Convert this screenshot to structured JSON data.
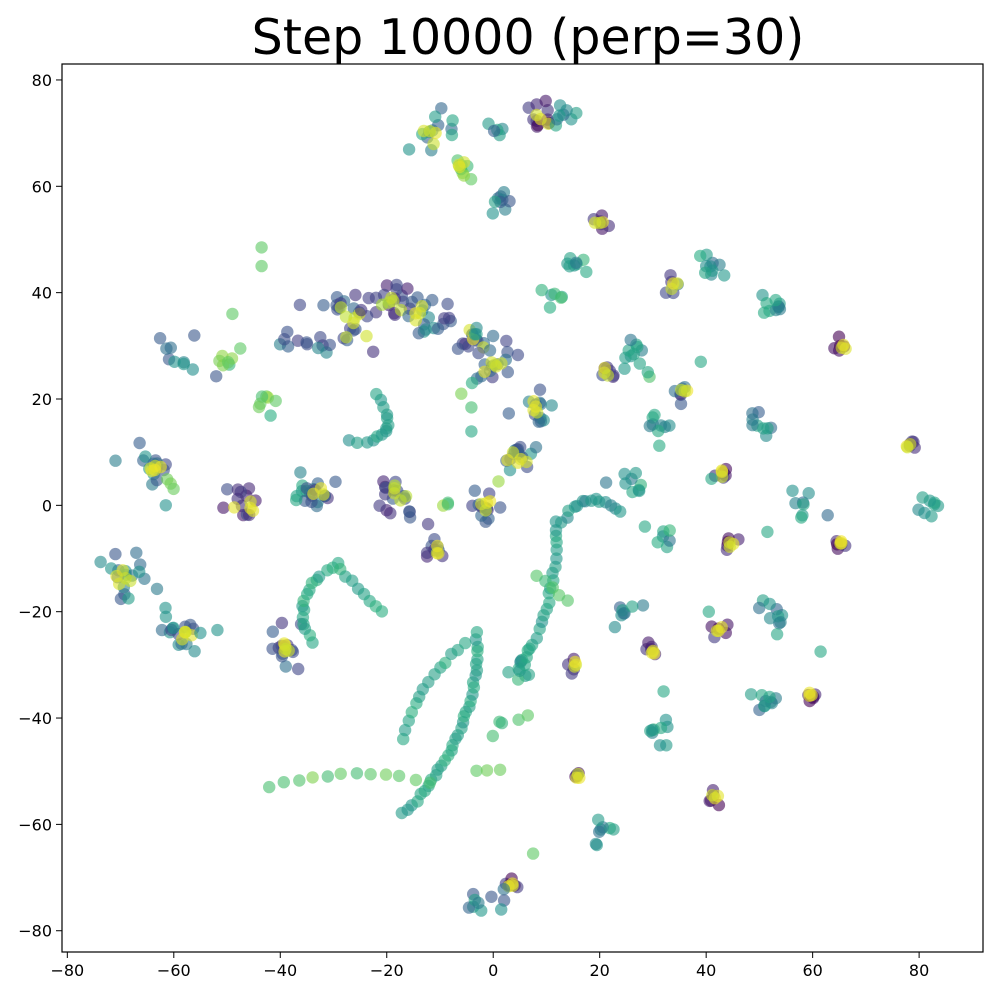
{
  "chart_data": {
    "type": "scatter",
    "title": "Step 10000 (perp=30)",
    "xlabel": "",
    "ylabel": "",
    "xlim": [
      -81,
      92
    ],
    "ylim": [
      -84,
      83
    ],
    "xticks": [
      -80,
      -60,
      -40,
      -20,
      0,
      20,
      40,
      60,
      80
    ],
    "yticks": [
      -80,
      -60,
      -40,
      -20,
      0,
      20,
      40,
      60,
      80
    ],
    "xtick_labels": [
      "−80",
      "−60",
      "−40",
      "−20",
      "0",
      "20",
      "40",
      "60",
      "80"
    ],
    "ytick_labels": [
      "−80",
      "−60",
      "−40",
      "−20",
      "0",
      "20",
      "40",
      "60",
      "80"
    ],
    "grid": false,
    "colormap": "viridis",
    "marker_alpha": 0.6,
    "clusters": [
      {
        "x": -11,
        "y": 69,
        "spread": 2.2,
        "n": 12,
        "c": 0.5,
        "top": 0.95
      },
      {
        "x": 1,
        "y": 71,
        "spread": 1.0,
        "n": 5,
        "c": 0.5
      },
      {
        "x": 9,
        "y": 72,
        "spread": 1.8,
        "n": 10,
        "c": 0.1,
        "top": 0.95
      },
      {
        "x": 13,
        "y": 73,
        "spread": 1.5,
        "n": 8,
        "c": 0.5
      },
      {
        "x": -6,
        "y": 63,
        "spread": 1.2,
        "n": 8,
        "c": 0.8,
        "top": 0.95
      },
      {
        "x": 1,
        "y": 57,
        "spread": 1.3,
        "n": 9,
        "c": 0.45
      },
      {
        "x": 20,
        "y": 53.5,
        "spread": 1.0,
        "n": 6,
        "c": 0.1,
        "top": 0.95
      },
      {
        "x": 16,
        "y": 45,
        "spread": 1.2,
        "n": 8,
        "c": 0.55
      },
      {
        "x": 41,
        "y": 45,
        "spread": 1.5,
        "n": 10,
        "c": 0.5
      },
      {
        "x": 34,
        "y": 41.5,
        "spread": 0.8,
        "n": 5,
        "c": 0.3,
        "top": 0.95
      },
      {
        "x": 53,
        "y": 38,
        "spread": 1.6,
        "n": 10,
        "c": 0.5
      },
      {
        "x": 11,
        "y": 39,
        "spread": 1.4,
        "n": 6,
        "c": 0.6
      },
      {
        "x": -27,
        "y": 35,
        "spread": 3.5,
        "n": 22,
        "c": 0.3,
        "top": 0.93
      },
      {
        "x": -19,
        "y": 38,
        "spread": 2.5,
        "n": 14,
        "c": 0.2,
        "top": 0.9
      },
      {
        "x": -14,
        "y": 36,
        "spread": 2.2,
        "n": 12,
        "c": 0.4,
        "top": 0.95
      },
      {
        "x": -33,
        "y": 30,
        "spread": 1.2,
        "n": 6,
        "c": 0.35
      },
      {
        "x": -39,
        "y": 31,
        "spread": 1.0,
        "n": 4,
        "c": 0.4
      },
      {
        "x": -9,
        "y": 35,
        "spread": 1.2,
        "n": 6,
        "c": 0.3
      },
      {
        "x": -3,
        "y": 31,
        "spread": 1.5,
        "n": 10,
        "c": 0.3,
        "top": 0.95
      },
      {
        "x": 0,
        "y": 26,
        "spread": 1.8,
        "n": 14,
        "c": 0.3,
        "top": 0.95
      },
      {
        "x": -3,
        "y": 33,
        "spread": 0.6,
        "n": 3,
        "c": 0.45
      },
      {
        "x": 26,
        "y": 29,
        "spread": 1.4,
        "n": 10,
        "c": 0.5
      },
      {
        "x": 21,
        "y": 25,
        "spread": 1.0,
        "n": 6,
        "c": 0.2,
        "top": 0.95
      },
      {
        "x": 29,
        "y": 25,
        "spread": 0.6,
        "n": 2,
        "c": 0.6
      },
      {
        "x": 65.5,
        "y": 30,
        "spread": 0.8,
        "n": 5,
        "c": 0.1,
        "top": 0.95
      },
      {
        "x": 36,
        "y": 21,
        "spread": 1.0,
        "n": 6,
        "c": 0.3,
        "top": 0.95
      },
      {
        "x": -58,
        "y": 28,
        "spread": 2.5,
        "n": 10,
        "c": 0.45
      },
      {
        "x": -51,
        "y": 27,
        "spread": 1.2,
        "n": 6,
        "c": 0.75
      },
      {
        "x": -43,
        "y": 19,
        "spread": 1.4,
        "n": 7,
        "c": 0.75
      },
      {
        "x": 8,
        "y": 18,
        "spread": 1.5,
        "n": 12,
        "c": 0.4,
        "top": 0.95
      },
      {
        "x": 31,
        "y": 14,
        "spread": 1.3,
        "n": 9,
        "c": 0.5
      },
      {
        "x": 51,
        "y": 15.5,
        "spread": 1.5,
        "n": 9,
        "c": 0.5
      },
      {
        "x": 5,
        "y": 9,
        "spread": 1.8,
        "n": 14,
        "c": 0.4,
        "top": 0.95
      },
      {
        "x": -64,
        "y": 7,
        "spread": 2.0,
        "n": 14,
        "c": 0.4,
        "top": 0.95
      },
      {
        "x": -35,
        "y": 4,
        "spread": 1.5,
        "n": 9,
        "c": 0.5
      },
      {
        "x": 26,
        "y": 4,
        "spread": 1.5,
        "n": 9,
        "c": 0.55
      },
      {
        "x": 78,
        "y": 11.5,
        "spread": 0.8,
        "n": 5,
        "c": 0.2,
        "top": 0.95
      },
      {
        "x": 43,
        "y": 6,
        "spread": 0.8,
        "n": 5,
        "c": 0.1,
        "top": 0.95
      },
      {
        "x": -33,
        "y": 2,
        "spread": 1.6,
        "n": 10,
        "c": 0.3,
        "top": 0.95
      },
      {
        "x": -47,
        "y": 1,
        "spread": 2.0,
        "n": 12,
        "c": 0.2,
        "top": 0.95
      },
      {
        "x": -18,
        "y": 1.5,
        "spread": 2.2,
        "n": 16,
        "c": 0.25,
        "top": 0.92
      },
      {
        "x": -2,
        "y": 0,
        "spread": 1.5,
        "n": 12,
        "c": 0.3,
        "top": 0.95
      },
      {
        "x": -9,
        "y": 0,
        "spread": 0.8,
        "n": 3,
        "c": 0.75
      },
      {
        "x": 59,
        "y": 0,
        "spread": 1.4,
        "n": 8,
        "c": 0.5
      },
      {
        "x": 82,
        "y": 0,
        "spread": 1.4,
        "n": 8,
        "c": 0.55
      },
      {
        "x": -11,
        "y": -8,
        "spread": 1.4,
        "n": 10,
        "c": 0.25,
        "top": 0.95
      },
      {
        "x": 33,
        "y": -6,
        "spread": 1.2,
        "n": 6,
        "c": 0.55
      },
      {
        "x": 45,
        "y": -7.5,
        "spread": 0.8,
        "n": 5,
        "c": 0.1,
        "top": 0.95
      },
      {
        "x": 65.5,
        "y": -7,
        "spread": 0.8,
        "n": 5,
        "c": 0.1,
        "top": 0.95
      },
      {
        "x": -70,
        "y": -13,
        "spread": 2.2,
        "n": 14,
        "c": 0.45,
        "top": 0.95
      },
      {
        "x": -58,
        "y": -24,
        "spread": 2.0,
        "n": 14,
        "c": 0.4,
        "top": 0.95
      },
      {
        "x": -39,
        "y": -27,
        "spread": 2.0,
        "n": 14,
        "c": 0.3,
        "top": 0.95
      },
      {
        "x": 24,
        "y": -20,
        "spread": 1.4,
        "n": 8,
        "c": 0.5
      },
      {
        "x": 42.5,
        "y": -23.5,
        "spread": 0.8,
        "n": 5,
        "c": 0.1,
        "top": 0.95
      },
      {
        "x": 53,
        "y": -21.5,
        "spread": 1.5,
        "n": 10,
        "c": 0.5
      },
      {
        "x": 30,
        "y": -27.5,
        "spread": 0.7,
        "n": 5,
        "c": 0.1,
        "top": 0.95
      },
      {
        "x": 5.5,
        "y": -30.5,
        "spread": 1.4,
        "n": 9,
        "c": 0.55
      },
      {
        "x": 15,
        "y": -30,
        "spread": 0.7,
        "n": 4,
        "c": 0.1,
        "top": 0.95
      },
      {
        "x": 59.5,
        "y": -35.5,
        "spread": 0.8,
        "n": 5,
        "c": 0.1,
        "top": 0.95
      },
      {
        "x": 50.5,
        "y": -38,
        "spread": 1.5,
        "n": 10,
        "c": 0.5
      },
      {
        "x": 31.5,
        "y": -43,
        "spread": 1.3,
        "n": 9,
        "c": 0.55
      },
      {
        "x": 16,
        "y": -51,
        "spread": 0.6,
        "n": 4,
        "c": 0.1,
        "top": 0.95
      },
      {
        "x": 41.5,
        "y": -54.5,
        "spread": 0.7,
        "n": 5,
        "c": 0.1,
        "top": 0.95
      },
      {
        "x": 20,
        "y": -62,
        "spread": 1.3,
        "n": 8,
        "c": 0.5
      },
      {
        "x": 3.5,
        "y": -71.5,
        "spread": 0.7,
        "n": 5,
        "c": 0.1,
        "top": 0.95
      },
      {
        "x": -2,
        "y": -74.5,
        "spread": 1.4,
        "n": 9,
        "c": 0.45
      },
      {
        "x": 3,
        "y": -41,
        "spread": 1.5,
        "n": 4,
        "c": 0.75
      }
    ],
    "arcs": [
      {
        "from": [
          -27,
          12
        ],
        "to": [
          -22,
          21
        ],
        "bend": -5,
        "n": 14,
        "c": 0.55
      },
      {
        "from": [
          -34,
          -26
        ],
        "to": [
          -29,
          -11
        ],
        "bend": 4,
        "n": 16,
        "c": 0.6
      },
      {
        "from": [
          -29,
          -12
        ],
        "to": [
          -21,
          -20
        ],
        "bend": 0,
        "n": 8,
        "c": 0.6
      },
      {
        "from": [
          -17,
          -58
        ],
        "to": [
          -3,
          -24
        ],
        "bend": -4,
        "n": 34,
        "c": 0.58
      },
      {
        "from": [
          -17,
          -44
        ],
        "to": [
          -5,
          -26
        ],
        "bend": 2,
        "n": 14,
        "c": 0.6
      },
      {
        "from": [
          5,
          -31
        ],
        "to": [
          12,
          -3
        ],
        "bend": -2,
        "n": 22,
        "c": 0.55
      },
      {
        "from": [
          13,
          -3
        ],
        "to": [
          24,
          -1
        ],
        "bend": 3,
        "n": 14,
        "c": 0.52
      },
      {
        "from": [
          8,
          -13
        ],
        "to": [
          14,
          -18
        ],
        "bend": 0,
        "n": 5,
        "c": 0.7
      },
      {
        "from": [
          -42,
          -53
        ],
        "to": [
          -12,
          -52
        ],
        "bend": 2,
        "n": 12,
        "c": 0.75
      },
      {
        "from": [
          -3,
          -50
        ],
        "to": [
          1,
          -50
        ],
        "bend": 0,
        "n": 3,
        "c": 0.75
      },
      {
        "from": [
          -4,
          23
        ],
        "to": [
          -4,
          14
        ],
        "bend": 0,
        "n": 3,
        "c": 0.65
      },
      {
        "from": [
          -63,
          -16
        ],
        "to": [
          -60,
          -23
        ],
        "bend": 0,
        "n": 3,
        "c": 0.5
      },
      {
        "from": [
          -61,
          5
        ],
        "to": [
          -60,
          3
        ],
        "bend": 0,
        "n": 3,
        "c": 0.75
      }
    ],
    "singles": [
      {
        "x": -43.5,
        "y": 48.5,
        "c": 0.75
      },
      {
        "x": -43.5,
        "y": 45,
        "c": 0.75
      },
      {
        "x": -49,
        "y": 36,
        "c": 0.75
      },
      {
        "x": -47.5,
        "y": 29.5,
        "c": 0.75
      },
      {
        "x": -61.5,
        "y": 0,
        "c": 0.5
      },
      {
        "x": -37,
        "y": 1,
        "c": 0.6
      },
      {
        "x": 40.5,
        "y": -20,
        "c": 0.6
      },
      {
        "x": 32,
        "y": -35,
        "c": 0.6
      },
      {
        "x": 61.5,
        "y": -27.5,
        "c": 0.6
      },
      {
        "x": 51.5,
        "y": -5,
        "c": 0.6
      },
      {
        "x": 1,
        "y": 4.5,
        "c": 0.85
      },
      {
        "x": 1.5,
        "y": -76,
        "c": 0.5
      },
      {
        "x": 7.5,
        "y": -65.5,
        "c": 0.75
      },
      {
        "x": 6.5,
        "y": -39.5,
        "c": 0.75
      },
      {
        "x": 28.5,
        "y": -4,
        "c": 0.6
      },
      {
        "x": -6,
        "y": 21,
        "c": 0.8
      },
      {
        "x": 39,
        "y": 27,
        "c": 0.6
      },
      {
        "x": 41,
        "y": 5,
        "c": 0.6
      },
      {
        "x": -55,
        "y": -24,
        "c": 0.5
      },
      {
        "x": -68.5,
        "y": -17.5,
        "c": 0.55
      },
      {
        "x": -66.5,
        "y": -12.5,
        "c": 0.5
      }
    ]
  }
}
